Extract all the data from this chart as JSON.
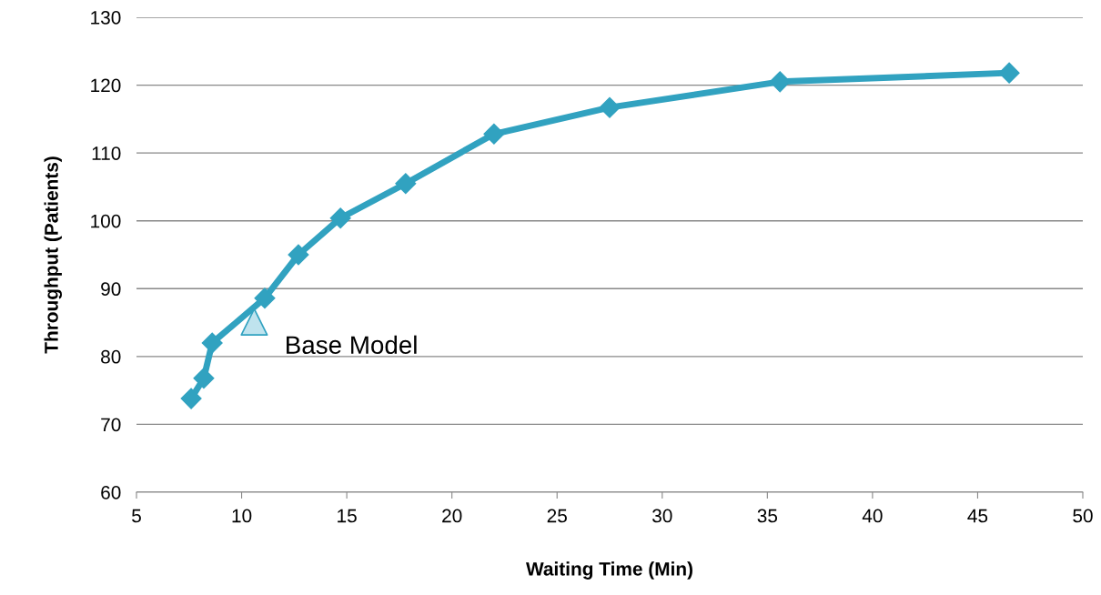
{
  "chart_data": {
    "type": "line",
    "xlabel": "Waiting Time (Min)",
    "ylabel": "Throughput (Patients)",
    "xlim": [
      5,
      50
    ],
    "xticks": [
      5,
      10,
      15,
      20,
      25,
      30,
      35,
      40,
      45,
      50
    ],
    "ylim": [
      60,
      130
    ],
    "yticks": [
      60,
      70,
      80,
      90,
      100,
      110,
      120,
      130
    ],
    "grid": "y",
    "legend": false,
    "marker": "diamond",
    "line_style": "solid",
    "series": [
      {
        "color": "#31a2c0",
        "x": [
          7.6,
          8.2,
          8.6,
          11.1,
          12.7,
          14.7,
          17.8,
          22.0,
          27.5,
          35.6,
          46.5
        ],
        "values": [
          73.8,
          76.8,
          82.0,
          88.6,
          95.0,
          100.4,
          105.5,
          112.8,
          116.7,
          120.5,
          121.8
        ]
      },
      {
        "type": "scatter",
        "marker": "triangle",
        "color": "#bfe3ee",
        "x": [
          10.6
        ],
        "values": [
          85.1
        ]
      }
    ],
    "annotations": [
      {
        "text": "Base Model",
        "x": 10.6,
        "y": 85.1
      }
    ]
  }
}
